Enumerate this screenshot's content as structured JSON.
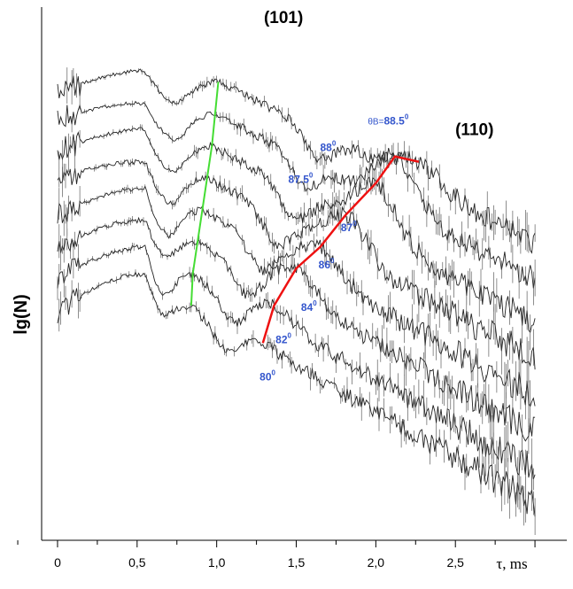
{
  "chart_data": {
    "type": "line",
    "title": "",
    "xlabel": "τ, ms",
    "ylabel": "lg(N)",
    "xlim": [
      -0.1,
      3.2
    ],
    "ylim": [
      0,
      1
    ],
    "grid": false,
    "x_ticks": [
      0,
      0.5,
      1.0,
      1.5,
      2.0,
      2.5
    ],
    "x_tick_labels": [
      "0",
      "0,5",
      "1,0",
      "1,5",
      "2,0",
      "2,5"
    ],
    "peak_labels": [
      {
        "text": "(101)",
        "tau": 1.42,
        "level": 0.97
      },
      {
        "text": "(110)",
        "tau": 2.62,
        "level": 0.76
      }
    ],
    "series": [
      {
        "name": "θB=80°",
        "label_prefix": "",
        "angle": "80",
        "start": 0.43,
        "peak1": 0.5,
        "dip": 0.42,
        "p101_tau": 0.84,
        "p101_level": 0.44,
        "p110_tau": 1.29,
        "p110_level": 0.37,
        "tail_level": 0.07,
        "label_tau": 1.27,
        "label_level": 0.3,
        "noise": 0.01
      },
      {
        "name": "θB=82°",
        "label_prefix": "",
        "angle": "82",
        "start": 0.49,
        "peak1": 0.55,
        "dip": 0.46,
        "p101_tau": 0.85,
        "p101_level": 0.5,
        "p110_tau": 1.36,
        "p110_level": 0.44,
        "tail_level": 0.13,
        "label_tau": 1.37,
        "label_level": 0.37,
        "noise": 0.01
      },
      {
        "name": "θB=84°",
        "label_prefix": "",
        "angle": "84",
        "start": 0.55,
        "peak1": 0.6,
        "dip": 0.53,
        "p101_tau": 0.88,
        "p101_level": 0.56,
        "p110_tau": 1.5,
        "p110_level": 0.51,
        "tail_level": 0.2,
        "label_tau": 1.53,
        "label_level": 0.43,
        "noise": 0.01
      },
      {
        "name": "θB=86°",
        "label_prefix": "",
        "angle": "86",
        "start": 0.61,
        "peak1": 0.66,
        "dip": 0.57,
        "p101_tau": 0.91,
        "p101_level": 0.62,
        "p110_tau": 1.65,
        "p110_level": 0.55,
        "tail_level": 0.27,
        "label_tau": 1.64,
        "label_level": 0.51,
        "noise": 0.01
      },
      {
        "name": "θB=87°",
        "label_prefix": "",
        "angle": "87",
        "start": 0.68,
        "peak1": 0.71,
        "dip": 0.63,
        "p101_tau": 0.94,
        "p101_level": 0.68,
        "p110_tau": 1.81,
        "p110_level": 0.61,
        "tail_level": 0.34,
        "label_tau": 1.78,
        "label_level": 0.58,
        "noise": 0.01
      },
      {
        "name": "θB=87.5°",
        "label_prefix": "",
        "angle": "87.5",
        "start": 0.73,
        "peak1": 0.77,
        "dip": 0.69,
        "p101_tau": 0.97,
        "p101_level": 0.74,
        "p110_tau": 2.0,
        "p110_level": 0.67,
        "tail_level": 0.41,
        "label_tau": 1.45,
        "label_level": 0.67,
        "noise": 0.009
      },
      {
        "name": "θB=88°",
        "label_prefix": "",
        "angle": "88",
        "start": 0.79,
        "peak1": 0.82,
        "dip": 0.75,
        "p101_tau": 0.99,
        "p101_level": 0.8,
        "p110_tau": 2.12,
        "p110_level": 0.72,
        "tail_level": 0.49,
        "label_tau": 1.65,
        "label_level": 0.73,
        "noise": 0.008
      },
      {
        "name": "θB=88.5°",
        "label_prefix": "θB=",
        "angle": "88.5",
        "start": 0.84,
        "peak1": 0.88,
        "dip": 0.82,
        "p101_tau": 1.01,
        "p101_level": 0.86,
        "p110_tau": 2.27,
        "p110_level": 0.71,
        "tail_level": 0.56,
        "label_tau": 1.95,
        "label_level": 0.78,
        "noise": 0.008
      }
    ],
    "guide_lines": [
      {
        "name": "(101) peak trace",
        "color": "#44dd33"
      },
      {
        "name": "(110) peak trace",
        "color": "#ee1111"
      }
    ]
  }
}
